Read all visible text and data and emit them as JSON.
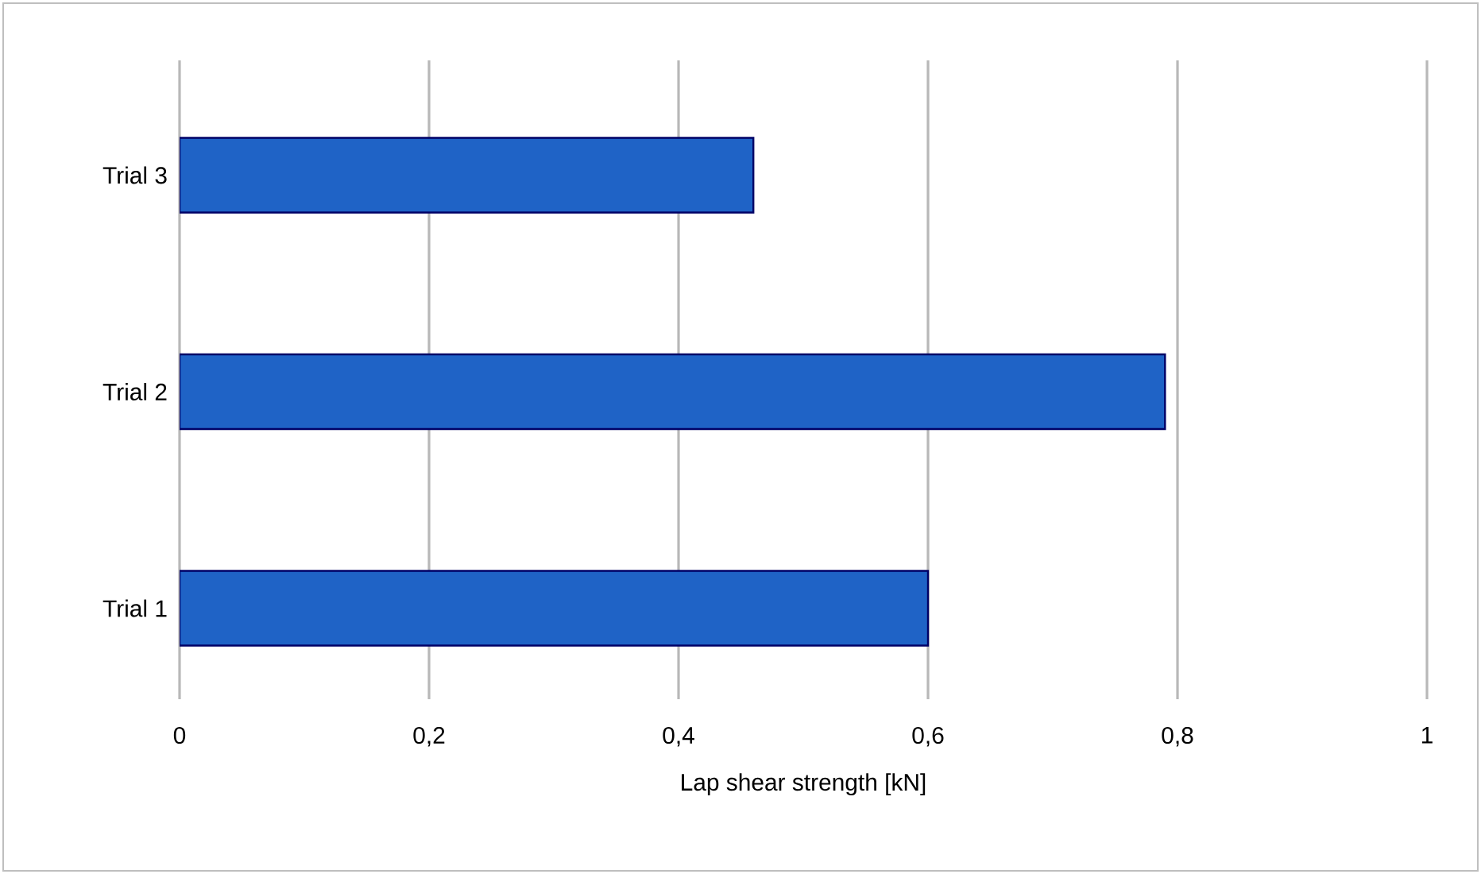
{
  "chart_data": {
    "type": "bar",
    "orientation": "horizontal",
    "xlabel": "Lap shear strength [kN]",
    "categories": [
      "Trial 3",
      "Trial 2",
      "Trial 1"
    ],
    "values": [
      0.46,
      0.79,
      0.6
    ],
    "color": "#1f63c6",
    "xlim": [
      0,
      1
    ],
    "xticks": [
      0,
      {
        "value": 0.2,
        "label": "0,2"
      },
      {
        "value": 0.4,
        "label": "0,4"
      },
      {
        "value": 0.6,
        "label": "0,6"
      },
      {
        "value": 0.8,
        "label": "0,8"
      },
      1
    ],
    "grid": "x"
  }
}
